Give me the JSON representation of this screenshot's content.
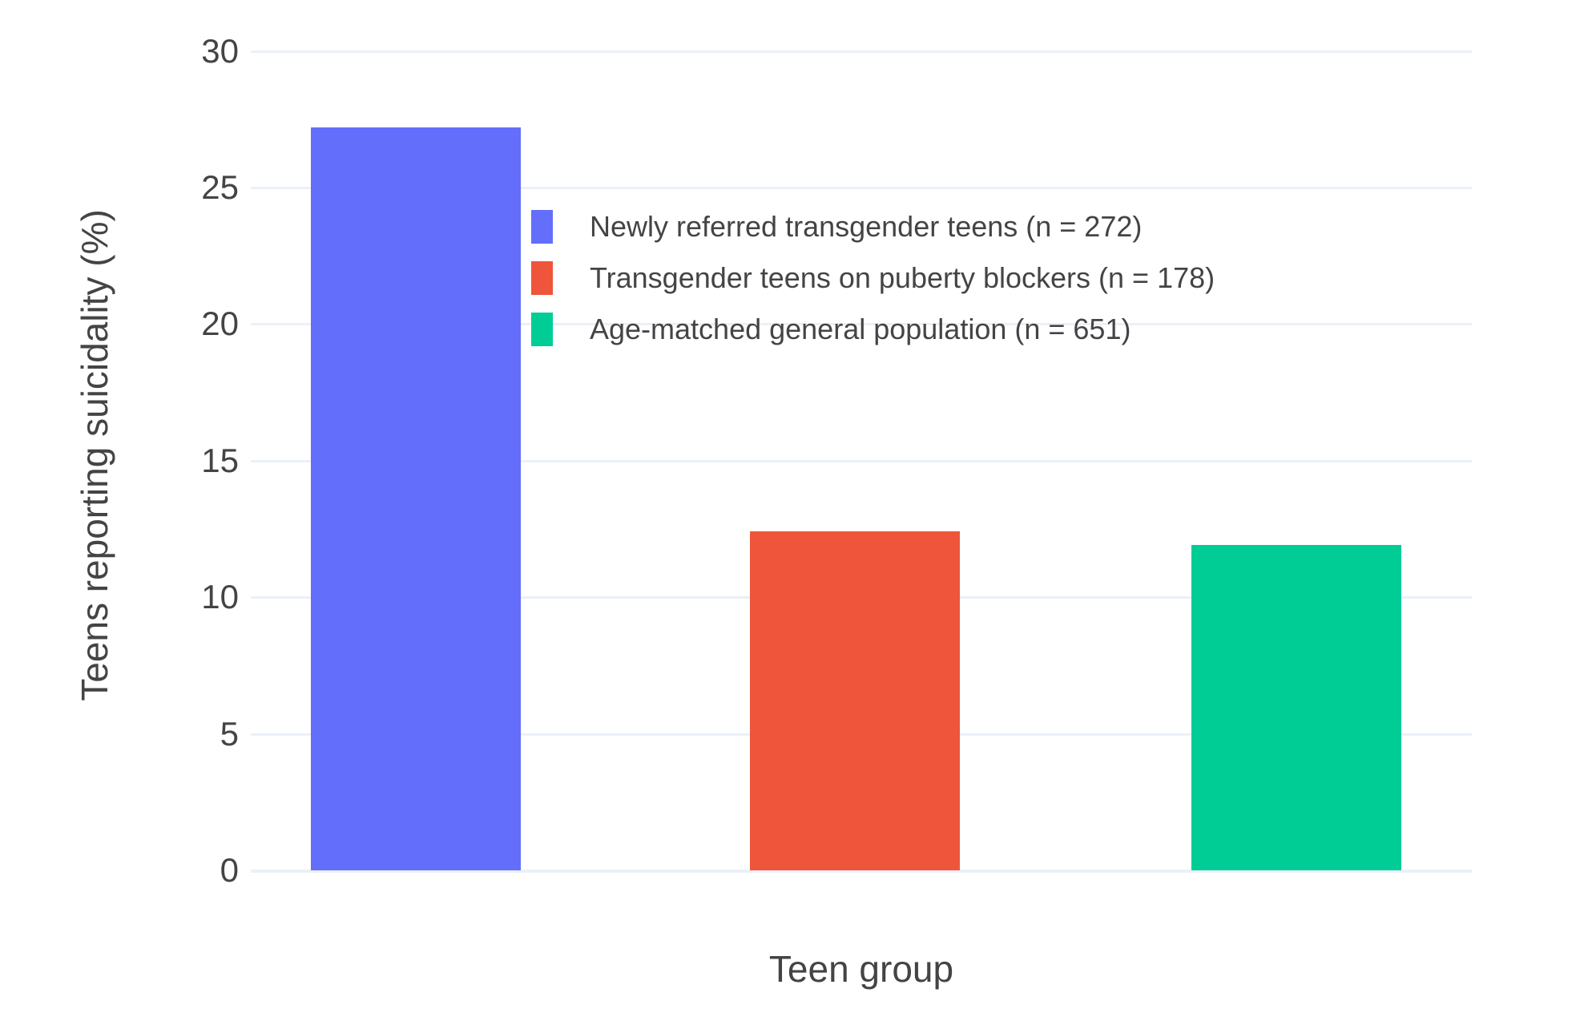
{
  "chart_data": {
    "type": "bar",
    "title": "",
    "xlabel": "Teen group",
    "ylabel": "Teens reporting suicidality (%)",
    "categories": [
      "Newly referred transgender teens",
      "Transgender teens on puberty blockers",
      "Age-matched general population"
    ],
    "series": [
      {
        "name": "Newly referred transgender teens (n = 272)",
        "value": 27.2,
        "color": "#636EFA"
      },
      {
        "name": "Transgender teens on puberty blockers (n = 178)",
        "value": 12.4,
        "color": "#EF553B"
      },
      {
        "name": "Age-matched general population (n = 651)",
        "value": 11.9,
        "color": "#00CC96"
      }
    ],
    "yticks": [
      0,
      5,
      10,
      15,
      20,
      25,
      30
    ],
    "ylim": [
      0,
      30.4
    ],
    "grid": true,
    "legend_position": "inside-top-center",
    "colors": {
      "grid": "#EBF0F8",
      "text": "#444444",
      "background": "#FFFFFF"
    }
  }
}
